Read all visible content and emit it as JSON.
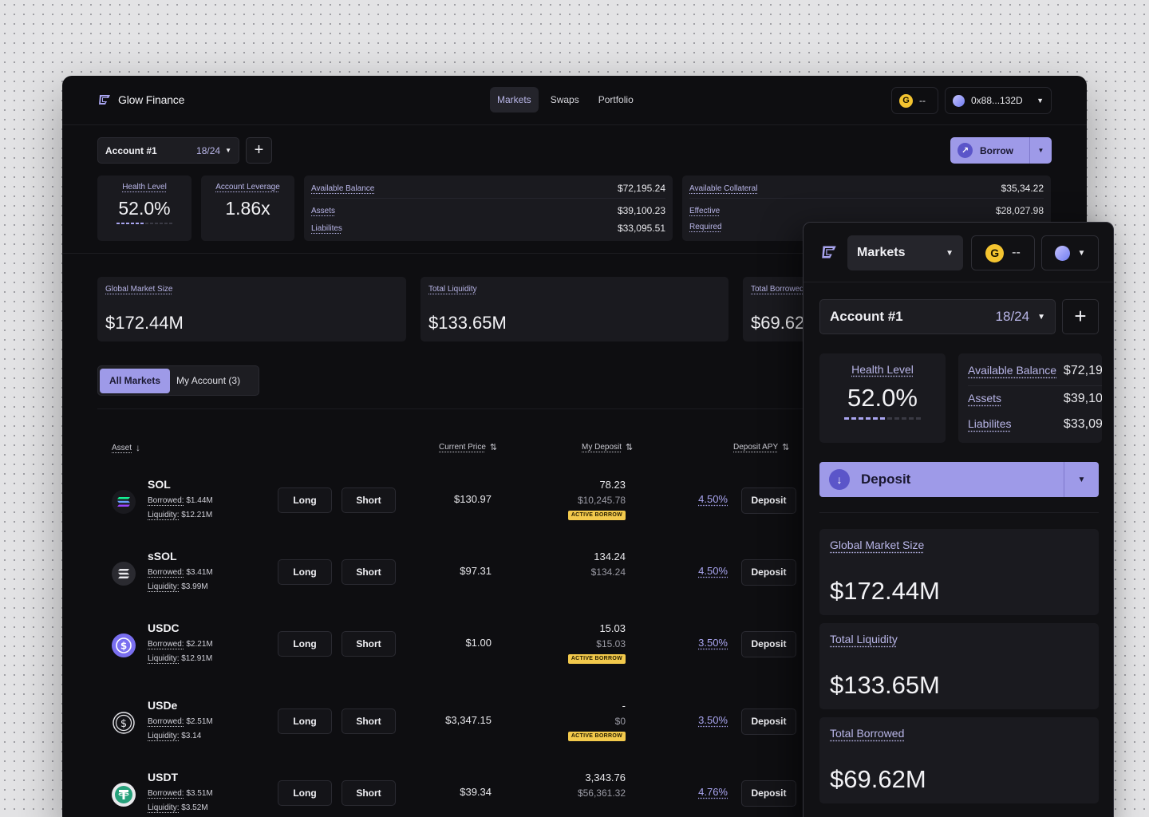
{
  "app": {
    "name": "Glow Finance"
  },
  "nav": {
    "tabs": [
      "Markets",
      "Swaps",
      "Portfolio"
    ],
    "active_tab": "Markets"
  },
  "wallet": {
    "token_symbol": "G",
    "token_balance": "--",
    "address": "0x88...132D"
  },
  "account": {
    "name": "Account #1",
    "count": "18/24"
  },
  "actions": {
    "borrow": "Borrow",
    "deposit": "Deposit"
  },
  "health": {
    "label": "Health Level",
    "value": "52.0%",
    "level_fraction": 0.52
  },
  "leverage": {
    "label": "Account Leverage",
    "value": "1.86x"
  },
  "balance": {
    "label": "Available Balance",
    "value": "$72,195.24",
    "assets_label": "Assets",
    "assets_value": "$39,100.23",
    "liabilities_label": "Liabilites",
    "liabilities_value": "$33,095.51"
  },
  "collateral": {
    "label": "Available Collateral",
    "value": "$35,34.22",
    "effective_label": "Effective",
    "effective_value": "$28,027.98",
    "required_label": "Required"
  },
  "stats": {
    "global_label": "Global Market Size",
    "global_value": "$172.44M",
    "liquidity_label": "Total Liquidity",
    "liquidity_value": "$133.65M",
    "borrowed_label": "Total Borrowed",
    "borrowed_value": "$69.62M"
  },
  "market_tabs": {
    "all": "All Markets",
    "mine": "My Account (3)"
  },
  "table": {
    "headers": {
      "asset": "Asset",
      "price": "Current Price",
      "deposit": "My Deposit",
      "apy": "Deposit APY"
    },
    "borrowed_label": "Borrowed:",
    "liquidity_label": "Liquidity:",
    "long_label": "Long",
    "short_label": "Short",
    "deposit_label": "Deposit",
    "badge_label": "ACTIVE BORROW",
    "rows": [
      {
        "symbol": "SOL",
        "borrowed": "$1.44M",
        "liquidity": "$12.21M",
        "price": "$130.97",
        "deposit": "78.23",
        "deposit_usd": "$10,245.78",
        "active": true,
        "apy": "4.50%",
        "icon": "sol-icon"
      },
      {
        "symbol": "sSOL",
        "borrowed": "$3.41M",
        "liquidity": "$3.99M",
        "price": "$97.31",
        "deposit": "134.24",
        "deposit_usd": "$134.24",
        "active": false,
        "apy": "4.50%",
        "icon": "ssol-icon"
      },
      {
        "symbol": "USDC",
        "borrowed": "$2.21M",
        "liquidity": "$12.91M",
        "price": "$1.00",
        "deposit": "15.03",
        "deposit_usd": "$15.03",
        "active": true,
        "apy": "3.50%",
        "icon": "usdc-icon"
      },
      {
        "symbol": "USDe",
        "borrowed": "$2.51M",
        "liquidity": "$3.14",
        "price": "$3,347.15",
        "deposit": "-",
        "deposit_usd": "$0",
        "active": true,
        "apy": "3.50%",
        "icon": "usde-icon"
      },
      {
        "symbol": "USDT",
        "borrowed": "$3.51M",
        "liquidity": "$3.52M",
        "price": "$39.34",
        "deposit": "3,343.76",
        "deposit_usd": "$56,361.32",
        "active": false,
        "apy": "4.76%",
        "icon": "usdt-icon"
      }
    ]
  },
  "colors": {
    "accent": "#9e9ae8",
    "badge": "#f2c94c",
    "background": "#0e0e11"
  }
}
